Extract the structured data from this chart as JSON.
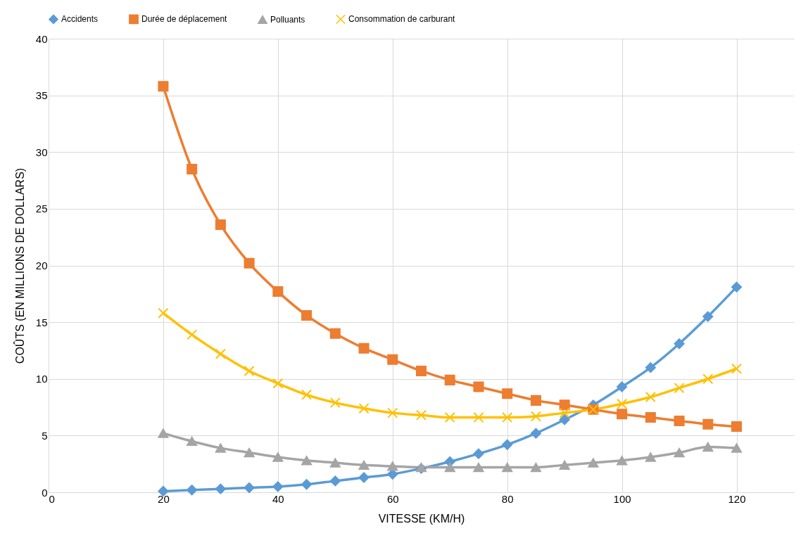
{
  "chart_data": {
    "type": "line",
    "xlabel": "VITESSE (KM/H)",
    "ylabel": "COÛTS (EN MILLIONS DE DOLLARS)",
    "x": [
      20,
      25,
      30,
      35,
      40,
      45,
      50,
      55,
      60,
      65,
      70,
      75,
      80,
      85,
      90,
      95,
      100,
      105,
      110,
      115,
      120
    ],
    "series": [
      {
        "name": "Accidents",
        "color": "#5b9bd5",
        "marker": "diamond",
        "values": [
          0.1,
          0.2,
          0.3,
          0.4,
          0.5,
          0.7,
          1.0,
          1.3,
          1.6,
          2.1,
          2.7,
          3.4,
          4.2,
          5.2,
          6.4,
          7.7,
          9.3,
          11.0,
          13.1,
          15.5,
          18.1
        ]
      },
      {
        "name": "Durée de déplacement",
        "color": "#ed7d31",
        "marker": "square",
        "values": [
          35.8,
          28.5,
          23.6,
          20.2,
          17.7,
          15.6,
          14.0,
          12.7,
          11.7,
          10.7,
          9.9,
          9.3,
          8.7,
          8.1,
          7.7,
          7.3,
          6.9,
          6.6,
          6.3,
          6.0,
          5.8
        ]
      },
      {
        "name": "Polluants",
        "color": "#a5a5a5",
        "marker": "triangle",
        "values": [
          5.2,
          4.5,
          3.9,
          3.5,
          3.1,
          2.8,
          2.6,
          2.4,
          2.3,
          2.2,
          2.2,
          2.2,
          2.2,
          2.2,
          2.4,
          2.6,
          2.8,
          3.1,
          3.5,
          4.0,
          3.9
        ]
      },
      {
        "name": "Consommation de carburant",
        "color": "#ffc000",
        "marker": "cross",
        "values": [
          15.8,
          13.9,
          12.2,
          10.7,
          9.6,
          8.6,
          7.9,
          7.4,
          7.0,
          6.8,
          6.6,
          6.6,
          6.6,
          6.7,
          7.0,
          7.3,
          7.8,
          8.4,
          9.2,
          10.0,
          10.9
        ]
      }
    ],
    "xlim": [
      0,
      130
    ],
    "xticks": [
      0,
      20,
      40,
      60,
      80,
      100,
      120
    ],
    "ylim": [
      0,
      40
    ],
    "yticks": [
      0,
      5,
      10,
      15,
      20,
      25,
      30,
      35,
      40
    ],
    "grid": true,
    "legend": "top",
    "line_style": "solid"
  }
}
